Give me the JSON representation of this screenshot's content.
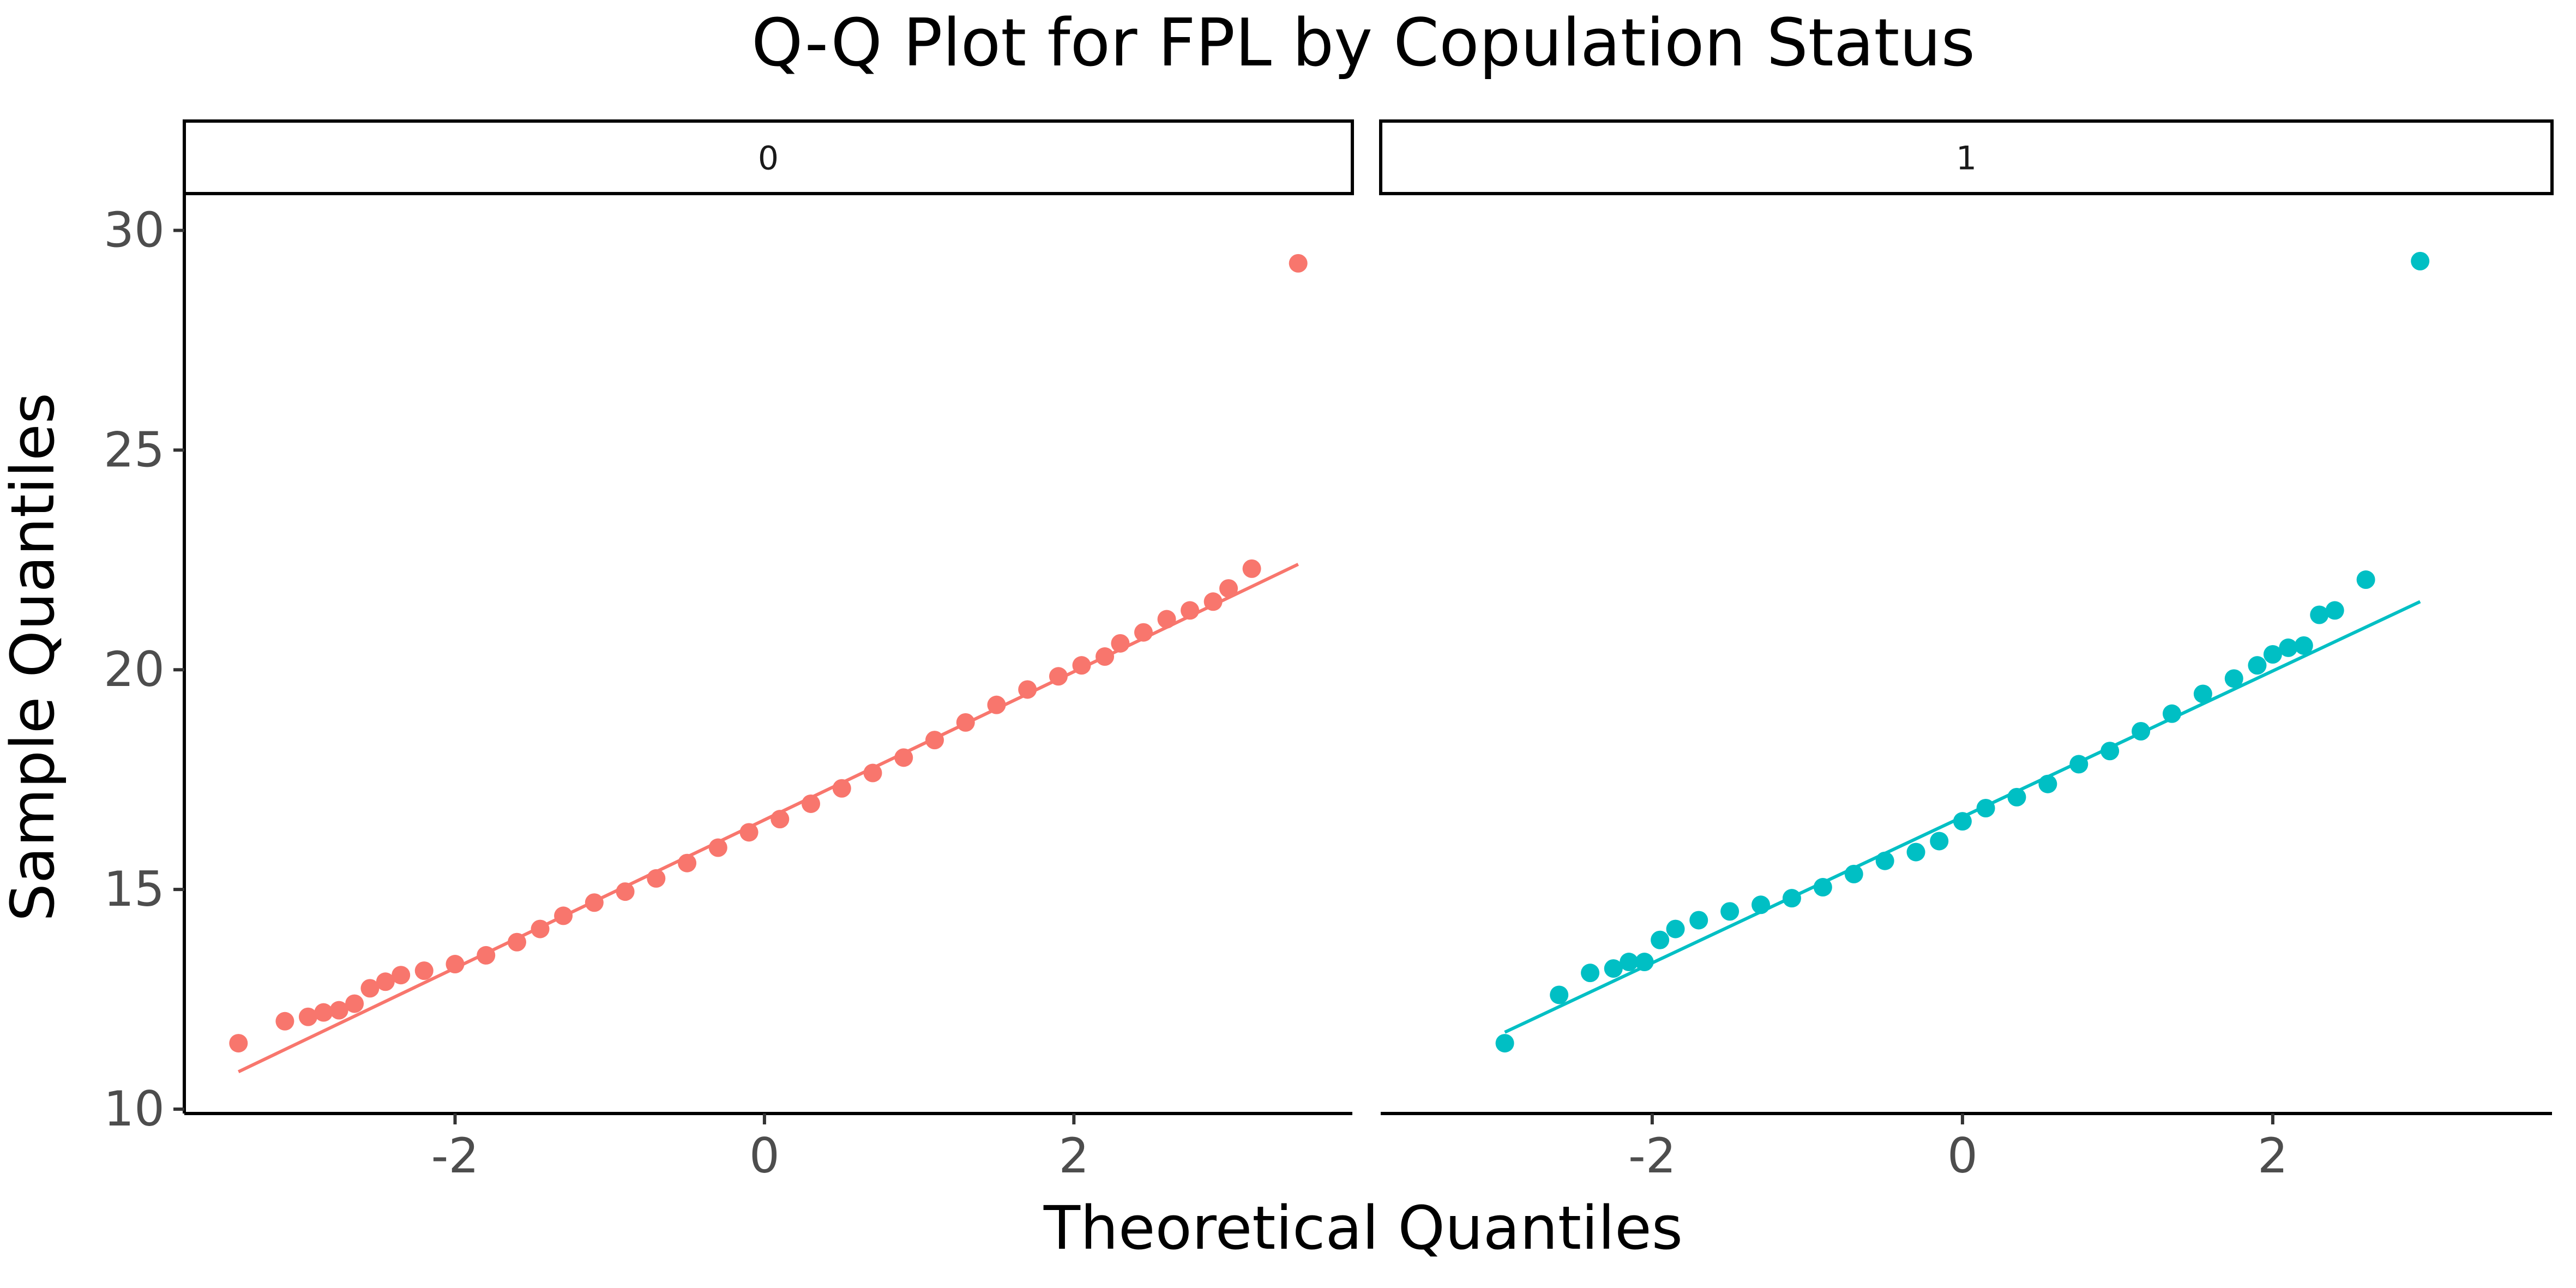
{
  "chart_data": {
    "type": "scatter",
    "title": "Q-Q Plot for FPL by Copulation Status",
    "xlabel": "Theoretical Quantiles",
    "ylabel": "Sample Quantiles",
    "facet_labels": [
      "0",
      "1"
    ],
    "x_ticks": [
      -2,
      0,
      2
    ],
    "x_tick_labels": [
      "-2",
      "0",
      "2"
    ],
    "y_ticks": [
      10,
      15,
      20,
      25,
      30
    ],
    "y_tick_labels": [
      "10",
      "15",
      "20",
      "25",
      "30"
    ],
    "xlim": [
      -3.75,
      3.8
    ],
    "ylim": [
      9.9,
      30.8
    ],
    "grid": false,
    "legend": "none",
    "panels": [
      {
        "facet": "0",
        "color": "#F8766D",
        "ref_line": {
          "x": [
            -3.4,
            3.45
          ],
          "y": [
            10.85,
            22.4
          ]
        },
        "points": [
          [
            -3.4,
            11.5
          ],
          [
            -3.1,
            12.0
          ],
          [
            -2.95,
            12.1
          ],
          [
            -2.85,
            12.2
          ],
          [
            -2.75,
            12.25
          ],
          [
            -2.65,
            12.4
          ],
          [
            -2.55,
            12.75
          ],
          [
            -2.45,
            12.9
          ],
          [
            -2.35,
            13.05
          ],
          [
            -2.2,
            13.15
          ],
          [
            -2.0,
            13.3
          ],
          [
            -1.8,
            13.5
          ],
          [
            -1.6,
            13.8
          ],
          [
            -1.45,
            14.1
          ],
          [
            -1.3,
            14.4
          ],
          [
            -1.1,
            14.7
          ],
          [
            -0.9,
            14.95
          ],
          [
            -0.7,
            15.25
          ],
          [
            -0.5,
            15.6
          ],
          [
            -0.3,
            15.95
          ],
          [
            -0.1,
            16.3
          ],
          [
            0.1,
            16.6
          ],
          [
            0.3,
            16.95
          ],
          [
            0.5,
            17.3
          ],
          [
            0.7,
            17.65
          ],
          [
            0.9,
            18.0
          ],
          [
            1.1,
            18.4
          ],
          [
            1.3,
            18.8
          ],
          [
            1.5,
            19.2
          ],
          [
            1.7,
            19.55
          ],
          [
            1.9,
            19.85
          ],
          [
            2.05,
            20.1
          ],
          [
            2.2,
            20.3
          ],
          [
            2.3,
            20.6
          ],
          [
            2.45,
            20.85
          ],
          [
            2.6,
            21.15
          ],
          [
            2.75,
            21.35
          ],
          [
            2.9,
            21.55
          ],
          [
            3.0,
            21.85
          ],
          [
            3.15,
            22.3
          ],
          [
            3.45,
            29.25
          ]
        ]
      },
      {
        "facet": "1",
        "color": "#00BFC4",
        "ref_line": {
          "x": [
            -2.95,
            2.95
          ],
          "y": [
            11.75,
            21.55
          ]
        },
        "points": [
          [
            -2.95,
            11.5
          ],
          [
            -2.6,
            12.6
          ],
          [
            -2.4,
            13.1
          ],
          [
            -2.25,
            13.2
          ],
          [
            -2.15,
            13.35
          ],
          [
            -2.05,
            13.35
          ],
          [
            -1.95,
            13.85
          ],
          [
            -1.85,
            14.1
          ],
          [
            -1.7,
            14.3
          ],
          [
            -1.5,
            14.5
          ],
          [
            -1.3,
            14.65
          ],
          [
            -1.1,
            14.8
          ],
          [
            -0.9,
            15.05
          ],
          [
            -0.7,
            15.35
          ],
          [
            -0.5,
            15.65
          ],
          [
            -0.3,
            15.85
          ],
          [
            -0.15,
            16.1
          ],
          [
            0.0,
            16.55
          ],
          [
            0.15,
            16.85
          ],
          [
            0.35,
            17.1
          ],
          [
            0.55,
            17.4
          ],
          [
            0.75,
            17.85
          ],
          [
            0.95,
            18.15
          ],
          [
            1.15,
            18.6
          ],
          [
            1.35,
            19.0
          ],
          [
            1.55,
            19.45
          ],
          [
            1.75,
            19.8
          ],
          [
            1.9,
            20.1
          ],
          [
            2.0,
            20.35
          ],
          [
            2.1,
            20.5
          ],
          [
            2.2,
            20.55
          ],
          [
            2.3,
            21.25
          ],
          [
            2.4,
            21.35
          ],
          [
            2.6,
            22.05
          ],
          [
            2.95,
            29.3
          ]
        ]
      }
    ]
  }
}
